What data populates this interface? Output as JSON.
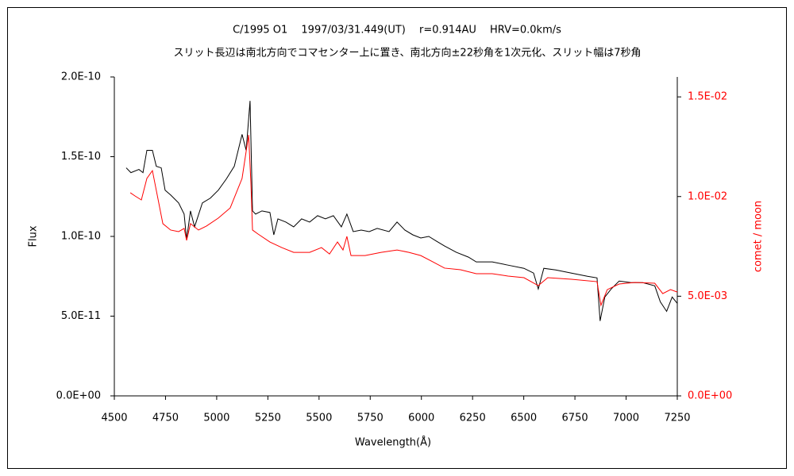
{
  "chart_data": {
    "type": "line",
    "title": "C/1995 O1　 1997/03/31.449(UT)　 r=0.914AU　 HRV=0.0km/s",
    "subtitle": "スリット長辺は南北方向でコマセンター上に置き、南北方向±22秒角を1次元化、スリット幅は7秒角",
    "xlabel": "Wavelength(Å)",
    "ylabel": "Flux",
    "y2label": "comet / moon",
    "xlim": [
      4500,
      7250
    ],
    "xticks": [
      4500,
      4750,
      5000,
      5250,
      5500,
      5750,
      6000,
      6250,
      6500,
      6750,
      7000,
      7250
    ],
    "ylim": [
      0,
      2e-10
    ],
    "yticks": [
      {
        "value": 0,
        "label": "0.0E+00"
      },
      {
        "value": 5e-11,
        "label": "5.0E-11"
      },
      {
        "value": 1e-10,
        "label": "1.0E-10"
      },
      {
        "value": 1.5e-10,
        "label": "1.5E-10"
      },
      {
        "value": 2e-10,
        "label": "2.0E-10"
      }
    ],
    "y2lim": [
      0,
      0.016
    ],
    "y2ticks": [
      {
        "value": 0,
        "label": "0.0E+00"
      },
      {
        "value": 0.005,
        "label": "5.0E-03"
      },
      {
        "value": 0.01,
        "label": "1.0E-02"
      },
      {
        "value": 0.015,
        "label": "1.5E-02"
      }
    ],
    "series": [
      {
        "color": "#000000",
        "x": [
          4558,
          4581,
          4620,
          4640,
          4659,
          4686,
          4705,
          4729,
          4748,
          4775,
          4814,
          4841,
          4853,
          4872,
          4892,
          4930,
          4969,
          5008,
          5047,
          5086,
          5124,
          5144,
          5163,
          5175,
          5190,
          5221,
          5260,
          5279,
          5299,
          5338,
          5376,
          5415,
          5454,
          5493,
          5531,
          5570,
          5609,
          5636,
          5667,
          5706,
          5745,
          5784,
          5842,
          5881,
          5919,
          5958,
          5997,
          6036,
          6074,
          6113,
          6171,
          6230,
          6268,
          6346,
          6423,
          6501,
          6548,
          6571,
          6598,
          6656,
          6733,
          6811,
          6858,
          6873,
          6896,
          6927,
          6966,
          7024,
          7082,
          7140,
          7167,
          7198,
          7225,
          7250
        ],
        "values": [
          1.43e-10,
          1.4e-10,
          1.42e-10,
          1.4e-10,
          1.54e-10,
          1.54e-10,
          1.44e-10,
          1.43e-10,
          1.29e-10,
          1.26e-10,
          1.21e-10,
          1.14e-10,
          9.8e-11,
          1.16e-10,
          1.06e-10,
          1.21e-10,
          1.24e-10,
          1.29e-10,
          1.36e-10,
          1.44e-10,
          1.64e-10,
          1.54e-10,
          1.85e-10,
          1.16e-10,
          1.14e-10,
          1.16e-10,
          1.15e-10,
          1.01e-10,
          1.11e-10,
          1.09e-10,
          1.06e-10,
          1.11e-10,
          1.09e-10,
          1.13e-10,
          1.11e-10,
          1.13e-10,
          1.06e-10,
          1.14e-10,
          1.03e-10,
          1.04e-10,
          1.03e-10,
          1.05e-10,
          1.03e-10,
          1.09e-10,
          1.04e-10,
          1.01e-10,
          9.9e-11,
          1e-10,
          9.7e-11,
          9.4e-11,
          9e-11,
          8.7e-11,
          8.4e-11,
          8.4e-11,
          8.2e-11,
          8e-11,
          7.7e-11,
          6.7e-11,
          8e-11,
          7.9e-11,
          7.7e-11,
          7.5e-11,
          7.4e-11,
          4.7e-11,
          6.2e-11,
          6.7e-11,
          7.2e-11,
          7.1e-11,
          7.1e-11,
          6.9e-11,
          5.9e-11,
          5.3e-11,
          6.2e-11,
          5.8e-11
        ]
      },
      {
        "color": "#ff0000",
        "axis": "y2",
        "x": [
          4578,
          4601,
          4632,
          4659,
          4686,
          4705,
          4737,
          4775,
          4814,
          4841,
          4853,
          4872,
          4911,
          4950,
          5008,
          5066,
          5124,
          5156,
          5167,
          5175,
          5202,
          5260,
          5318,
          5376,
          5454,
          5512,
          5551,
          5590,
          5617,
          5636,
          5656,
          5725,
          5803,
          5881,
          5939,
          5997,
          6055,
          6113,
          6191,
          6268,
          6346,
          6423,
          6501,
          6571,
          6617,
          6733,
          6858,
          6877,
          6908,
          6966,
          7043,
          7140,
          7179,
          7217,
          7250
        ],
        "values": [
          0.01019,
          0.01003,
          0.00983,
          0.01091,
          0.0113,
          0.01031,
          0.00864,
          0.00832,
          0.00824,
          0.0084,
          0.0078,
          0.00864,
          0.00832,
          0.00852,
          0.00892,
          0.00943,
          0.01091,
          0.01309,
          0.01071,
          0.00832,
          0.00812,
          0.00772,
          0.00744,
          0.0072,
          0.0072,
          0.00744,
          0.00712,
          0.00772,
          0.00732,
          0.008,
          0.00704,
          0.00704,
          0.0072,
          0.00732,
          0.0072,
          0.00704,
          0.00673,
          0.00641,
          0.00633,
          0.00613,
          0.00613,
          0.00601,
          0.00593,
          0.00553,
          0.00593,
          0.00585,
          0.00573,
          0.00454,
          0.00533,
          0.00561,
          0.00569,
          0.00565,
          0.00513,
          0.00533,
          0.00521
        ]
      }
    ]
  }
}
